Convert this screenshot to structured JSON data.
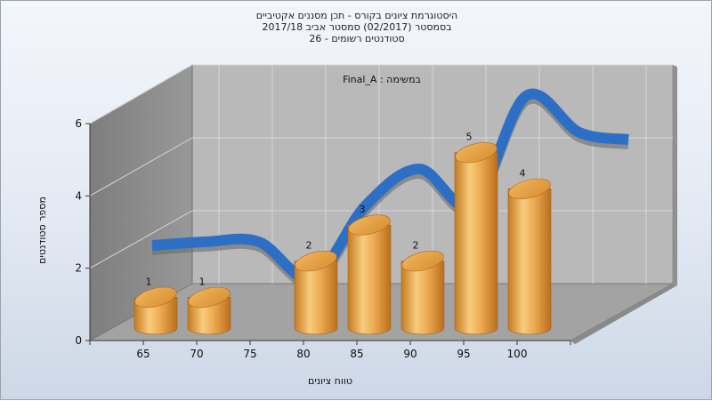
{
  "title_lines": [
    "היסטוגרמת ציונים בקורס - תכן מסננים אקטיביים",
    "בסמסטר  (02/2017)  סמסטר אביב 2017/18",
    "סטודנטים רשומים - 26"
  ],
  "chart_data": {
    "type": "bar",
    "categories": [
      "65",
      "70",
      "75",
      "80",
      "85",
      "90",
      "95",
      "100"
    ],
    "values": [
      1,
      1,
      0,
      2,
      3,
      2,
      5,
      4
    ],
    "xlabel": "טווח ציונים",
    "ylabel": "מספר סטודנטים",
    "ylim": [
      0,
      6
    ],
    "yticks": [
      "0",
      "2",
      "4",
      "6"
    ],
    "annotation": "במשימה : Final_A",
    "colors": {
      "bar": "#e8a548",
      "curve": "#2e6fc6"
    },
    "grid": true
  }
}
